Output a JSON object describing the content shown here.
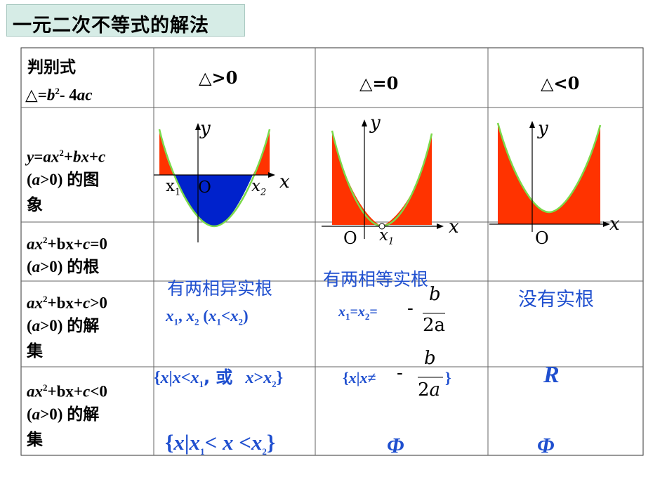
{
  "title": "一元二次不等式的解法",
  "header": {
    "col0_line1": "判别式",
    "col0_line2_sym": "△",
    "col0_line2_eq": "=",
    "col0_line2_b": "b",
    "col0_line2_sup": "2",
    "col0_line2_rest": "- 4",
    "col0_line2_ac": "ac",
    "col1": "△>0",
    "col2": "△=0",
    "col3": "△<0"
  },
  "rows": {
    "r1_label": {
      "y": "y",
      "eq": "=",
      "a": "ax",
      "sup": "2",
      "plus1": "+",
      "bx": "bx",
      "plus2": "+",
      "c": "c",
      "cond_open": "(",
      "cond_a": "a",
      "cond_rest": ">0) ",
      "cn": "的图",
      "cn2": "象"
    },
    "r2_label": {
      "a": "ax",
      "sup": "2",
      "mid": "+bx+",
      "c": "c",
      "tail": "=0",
      "cond_open": "(",
      "cond_a": "a",
      "cond_rest": ">0) ",
      "cn": "的根"
    },
    "r3_label": {
      "a": "ax",
      "sup": "2",
      "mid": "+bx+",
      "c": "c",
      "tail": ">0",
      "cond_open": "(",
      "cond_a": "a",
      "cond_rest": ">0) ",
      "cn": "的解",
      "cn2": "集"
    },
    "r4_label": {
      "a": "ax",
      "sup": "2",
      "mid": "+bx+",
      "c": "c",
      "tail": "<0",
      "cond_open": "(",
      "cond_a": "a",
      "cond_rest": ">0) ",
      "cn": "的解",
      "cn2": "集"
    }
  },
  "graph_labels": {
    "y": "y",
    "x": "x",
    "O": "O",
    "x1": "x",
    "x1_sub": "1",
    "x2": "x",
    "x2_sub": "2"
  },
  "roots": {
    "pos": "有两相异实根",
    "pos_formula": {
      "x1": "x",
      "s1": "1",
      "comma": ", ",
      "x2": "x",
      "s2": "2",
      "open": " (",
      "x1b": "x",
      "s1b": "1",
      "lt": "<",
      "x2b": "x",
      "s2b": "2",
      "close": ")"
    },
    "zero": "有两相等实根",
    "zero_formula": {
      "x1": "x",
      "s1": "1",
      "eq1": "=",
      "x2": "x",
      "s2": "2",
      "eq2": "=",
      "minus": "-",
      "num": "b",
      "den": "2a"
    },
    "neg": "没有实根"
  },
  "gt_solution": {
    "pos": {
      "open": "{",
      "x": "x",
      "bar": "|",
      "x2": "x",
      "lt": "<",
      "x1": "x",
      "s1": "1",
      "or": ", 或",
      "x3": "x",
      "gt": ">",
      "x4": "x",
      "s2": "2",
      "close": "}"
    },
    "zero": {
      "open": "{",
      "x": "x",
      "bar": "|",
      "x2": "x",
      "ne": "≠",
      "minus": "-",
      "num": "b",
      "den": "2a",
      "close": "}"
    },
    "neg": "R"
  },
  "lt_solution": {
    "pos": {
      "open": "{",
      "x": "x",
      "bar": "|",
      "x1": "x",
      "s1": "1",
      "lt1": "< ",
      "xm": "x",
      "lt2": " <",
      "x2": "x",
      "s2": "2",
      "close": "}"
    },
    "zero": "Φ",
    "neg": "Φ"
  },
  "colors": {
    "fill_positive": "#ff3300",
    "fill_negative": "#0022cc",
    "curve_outline": "#7bd94a",
    "text_blue": "#1f4fcf"
  }
}
